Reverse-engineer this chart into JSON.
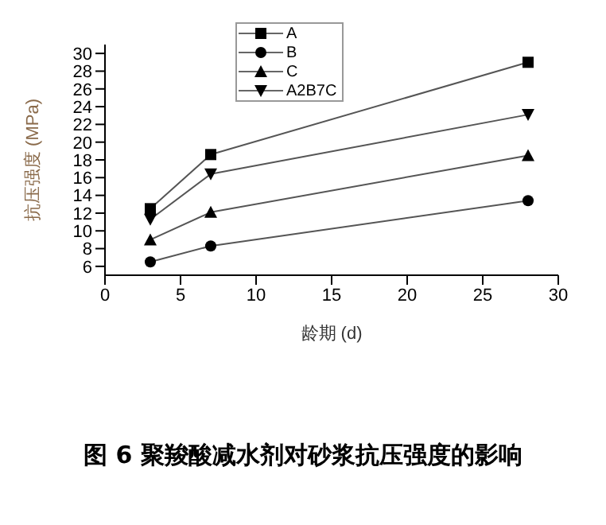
{
  "chart_data": {
    "type": "line",
    "title": "图 6   聚羧酸减水剂对砂浆抗压强度的影响",
    "xlabel": "龄期  (d)",
    "ylabel": "抗压强度 (MPa)",
    "x": [
      3,
      7,
      28
    ],
    "series": [
      {
        "name": "A",
        "color": "#000000",
        "marker": "square",
        "values": [
          12.5,
          18.6,
          29.0
        ]
      },
      {
        "name": "B",
        "color": "#000000",
        "marker": "circle",
        "values": [
          6.5,
          8.3,
          13.4
        ]
      },
      {
        "name": "C",
        "color": "#000000",
        "marker": "triangle",
        "values": [
          9.0,
          12.1,
          18.5
        ]
      },
      {
        "name": "A2B7C",
        "color": "#000000",
        "marker": "triangle-down",
        "values": [
          11.3,
          16.4,
          23.1
        ]
      }
    ],
    "xlim": [
      0,
      30
    ],
    "xticks": [
      0,
      5,
      10,
      15,
      20,
      25,
      30
    ],
    "ylim": [
      5,
      31
    ],
    "yticks": [
      6,
      8,
      10,
      12,
      14,
      16,
      18,
      20,
      22,
      24,
      26,
      28,
      30
    ],
    "grid": false,
    "legend": "top",
    "line_style": "solid"
  }
}
